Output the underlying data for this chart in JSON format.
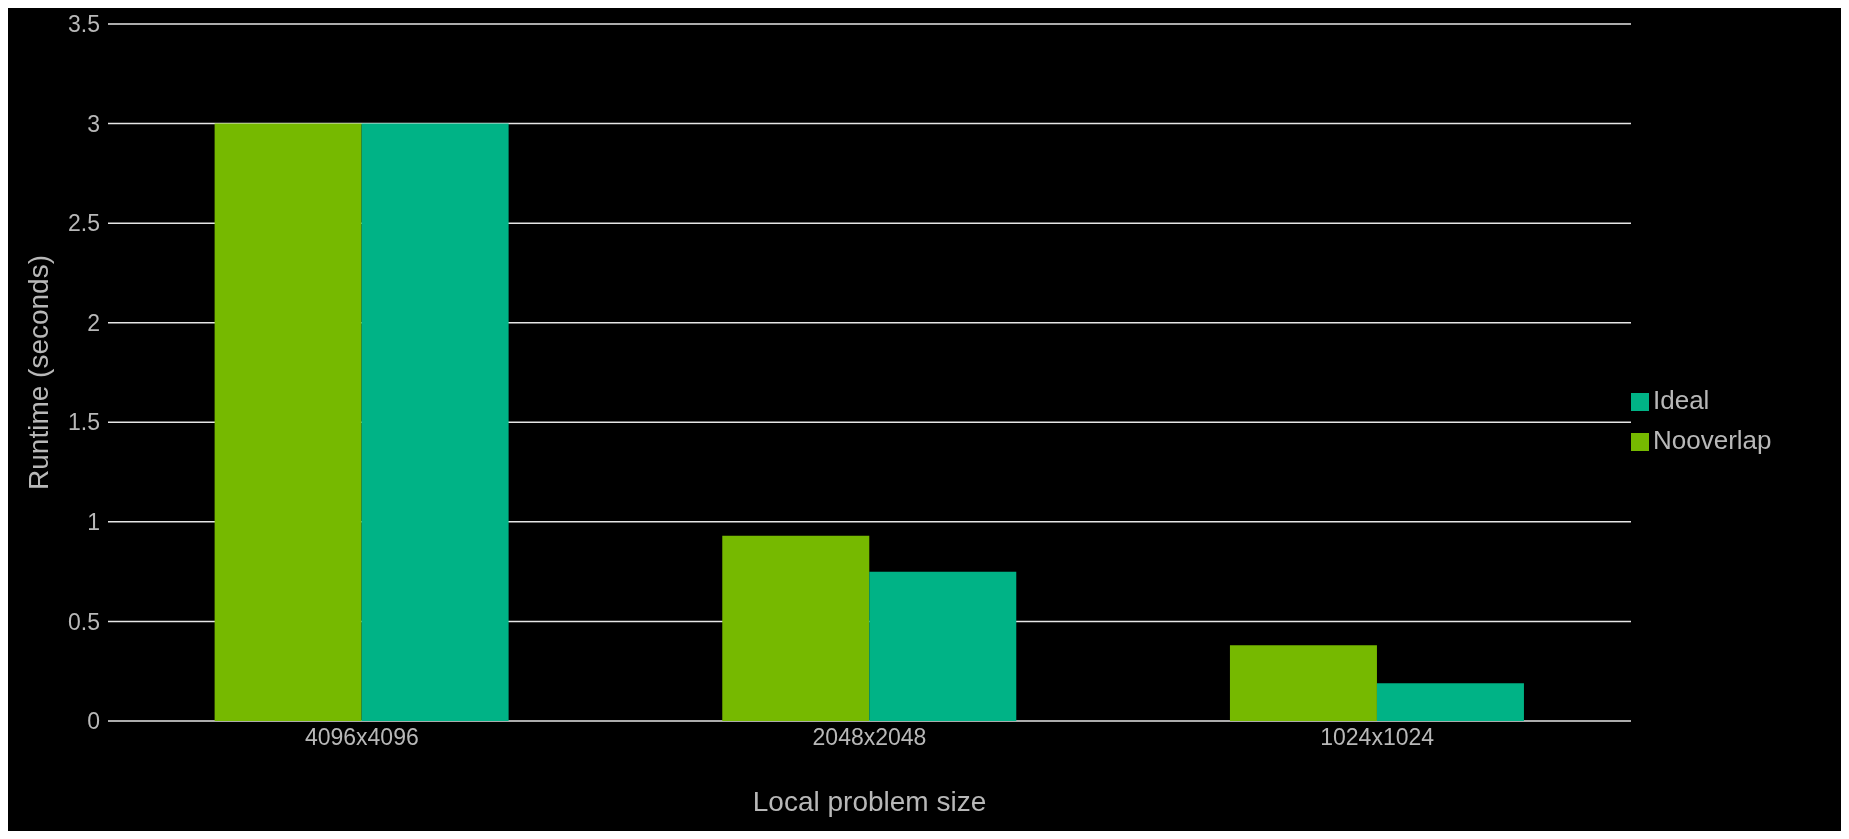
{
  "chart_data": {
    "type": "bar",
    "xlabel": "Local problem size",
    "ylabel": "Runtime (seconds)",
    "categories": [
      "4096x4096",
      "2048x2048",
      "1024x1024"
    ],
    "series": [
      {
        "name": "Nooverlap",
        "color": "#76b900",
        "values": [
          3.0,
          0.93,
          0.38
        ]
      },
      {
        "name": "Ideal",
        "color": "#00b386",
        "values": [
          3.0,
          0.75,
          0.19
        ]
      }
    ],
    "ylim": [
      0,
      3.5
    ],
    "yticks": [
      0,
      0.5,
      1,
      1.5,
      2,
      2.5,
      3,
      3.5
    ],
    "grid": "y",
    "legend": "right"
  }
}
